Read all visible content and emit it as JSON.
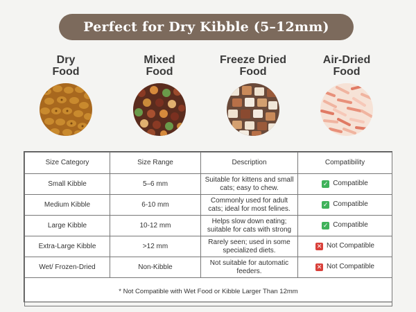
{
  "banner": {
    "title": "Perfect for Dry Kibble (5–12mm)"
  },
  "foods": [
    {
      "line1": "Dry",
      "line2": "Food",
      "icon": "dry-kibble-icon"
    },
    {
      "line1": "Mixed",
      "line2": "Food",
      "icon": "mixed-kibble-icon"
    },
    {
      "line1": "Freeze Dried",
      "line2": "Food",
      "icon": "freeze-dried-icon"
    },
    {
      "line1": "Air-Dried",
      "line2": "Food",
      "icon": "air-dried-icon"
    }
  ],
  "table": {
    "headers": [
      "Size Category",
      "Size Range",
      "Description",
      "Compatibility"
    ],
    "rows": [
      {
        "category": "Small Kibble",
        "range": "5–6 mm",
        "description": "Suitable for kittens and small cats; easy to chew.",
        "compat": "Compatible",
        "status": "ok"
      },
      {
        "category": "Medium Kibble",
        "range": "6-10 mm",
        "description": "Commonly used for adult cats; ideal for most felines.",
        "compat": "Compatible",
        "status": "ok"
      },
      {
        "category": "Large Kibble",
        "range": "10-12 mm",
        "description": "Helps slow down eating; suitable for cats with strong",
        "compat": "Compatible",
        "status": "ok"
      },
      {
        "category": "Extra-Large Kibble",
        "range": ">12 mm",
        "description": "Rarely seen; used in some specialized diets.",
        "compat": "Not Compatible",
        "status": "no"
      },
      {
        "category": "Wet/ Frozen-Dried",
        "range": "Non-Kibble",
        "description": "Not suitable for automatic feeders.",
        "compat": "Not Compatible",
        "status": "no"
      }
    ],
    "note": "* Not Compatible with Wet Food or Kibble Larger Than 12mm"
  },
  "colors": {
    "banner": "#7c6a5c",
    "ok": "#3fb25a",
    "no": "#d9403a"
  }
}
